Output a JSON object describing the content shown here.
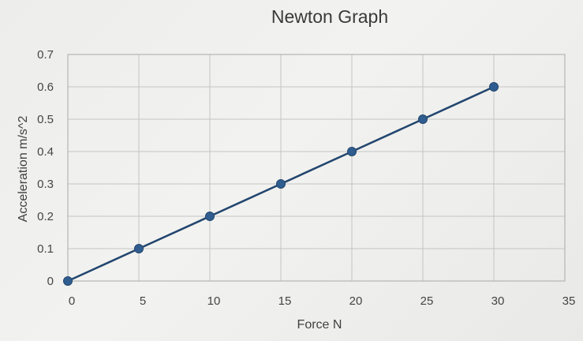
{
  "chart_data": {
    "type": "line",
    "title": "Newton Graph",
    "xlabel": "Force N",
    "ylabel": "Acceleration m/s^2",
    "xlim": [
      0,
      35
    ],
    "ylim": [
      0,
      0.7
    ],
    "x_ticks": [
      "0",
      "5",
      "10",
      "15",
      "20",
      "25",
      "30",
      "35"
    ],
    "y_ticks": [
      "0",
      "0.1",
      "0.2",
      "0.3",
      "0.4",
      "0.5",
      "0.6",
      "0.7"
    ],
    "grid": true,
    "legend": "none",
    "series": [
      {
        "x": [
          0,
          5,
          10,
          15,
          20,
          25,
          30
        ],
        "y": [
          0,
          0.1,
          0.2,
          0.3,
          0.4,
          0.5,
          0.6
        ],
        "color": "#2f5d8f"
      }
    ]
  }
}
